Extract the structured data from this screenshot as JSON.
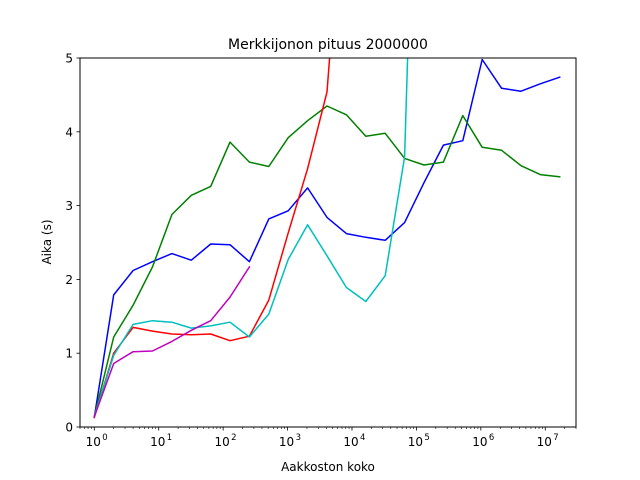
{
  "chart_data": {
    "type": "line",
    "title": "Merkkijonon pituus 2000000",
    "xlabel": "Aakkoston koko",
    "ylabel": "Aika (s)",
    "xscale": "log",
    "xlim": [
      0.6,
      30000000
    ],
    "ylim": [
      0,
      5
    ],
    "grid": false,
    "legend": "none",
    "x_ticks": [
      {
        "value": 1,
        "label": "10",
        "exp": "0"
      },
      {
        "value": 10,
        "label": "10",
        "exp": "1"
      },
      {
        "value": 100,
        "label": "10",
        "exp": "2"
      },
      {
        "value": 1000,
        "label": "10",
        "exp": "3"
      },
      {
        "value": 10000,
        "label": "10",
        "exp": "4"
      },
      {
        "value": 100000,
        "label": "10",
        "exp": "5"
      },
      {
        "value": 1000000,
        "label": "10",
        "exp": "6"
      },
      {
        "value": 10000000,
        "label": "10",
        "exp": "7"
      }
    ],
    "y_ticks": [
      {
        "value": 0,
        "label": "0"
      },
      {
        "value": 1,
        "label": "1"
      },
      {
        "value": 2,
        "label": "2"
      },
      {
        "value": 3,
        "label": "3"
      },
      {
        "value": 4,
        "label": "4"
      },
      {
        "value": 5,
        "label": "5"
      }
    ],
    "series": [
      {
        "color": "#0000ff",
        "x": [
          1,
          2,
          4,
          8,
          16,
          32,
          64,
          128,
          256,
          512,
          1024,
          2048,
          4096,
          8192,
          16384,
          32768,
          65536,
          131072,
          262144,
          524288,
          1048576,
          2097152,
          4194304,
          8388608,
          16777216
        ],
        "y": [
          0.13,
          1.79,
          2.12,
          2.24,
          2.35,
          2.26,
          2.48,
          2.47,
          2.24,
          2.82,
          2.93,
          3.24,
          2.84,
          2.62,
          2.57,
          2.53,
          2.77,
          3.31,
          3.82,
          3.88,
          4.98,
          4.59,
          4.55,
          4.65,
          4.74
        ]
      },
      {
        "color": "#008000",
        "x": [
          1,
          2,
          4,
          8,
          16,
          32,
          64,
          128,
          256,
          512,
          1024,
          2048,
          4096,
          8192,
          16384,
          32768,
          65536,
          131072,
          262144,
          524288,
          1048576,
          2097152,
          4194304,
          8388608,
          16777216
        ],
        "y": [
          0.14,
          1.22,
          1.65,
          2.17,
          2.88,
          3.14,
          3.26,
          3.86,
          3.59,
          3.53,
          3.92,
          4.15,
          4.35,
          4.23,
          3.94,
          3.98,
          3.64,
          3.55,
          3.59,
          4.22,
          3.79,
          3.75,
          3.54,
          3.42,
          3.39
        ]
      },
      {
        "color": "#ff0000",
        "x": [
          1,
          2,
          4,
          8,
          16,
          32,
          64,
          128,
          256,
          512,
          1024,
          2048,
          4096,
          4500
        ],
        "y": [
          0.13,
          1.0,
          1.35,
          1.3,
          1.26,
          1.25,
          1.26,
          1.17,
          1.23,
          1.72,
          2.63,
          3.5,
          4.54,
          5.0
        ]
      },
      {
        "color": "#00bfbf",
        "x": [
          1,
          2,
          4,
          8,
          16,
          32,
          64,
          128,
          256,
          512,
          1024,
          2048,
          4096,
          8192,
          16384,
          32768,
          65536,
          73000
        ],
        "y": [
          0.14,
          0.97,
          1.39,
          1.44,
          1.42,
          1.34,
          1.37,
          1.42,
          1.22,
          1.53,
          2.27,
          2.74,
          2.32,
          1.89,
          1.7,
          2.05,
          3.66,
          5.0
        ]
      },
      {
        "color": "#bf00bf",
        "x": [
          1,
          2,
          4,
          8,
          16,
          32,
          64,
          128,
          256
        ],
        "y": [
          0.14,
          0.86,
          1.02,
          1.03,
          1.16,
          1.31,
          1.44,
          1.76,
          2.17
        ]
      }
    ]
  }
}
